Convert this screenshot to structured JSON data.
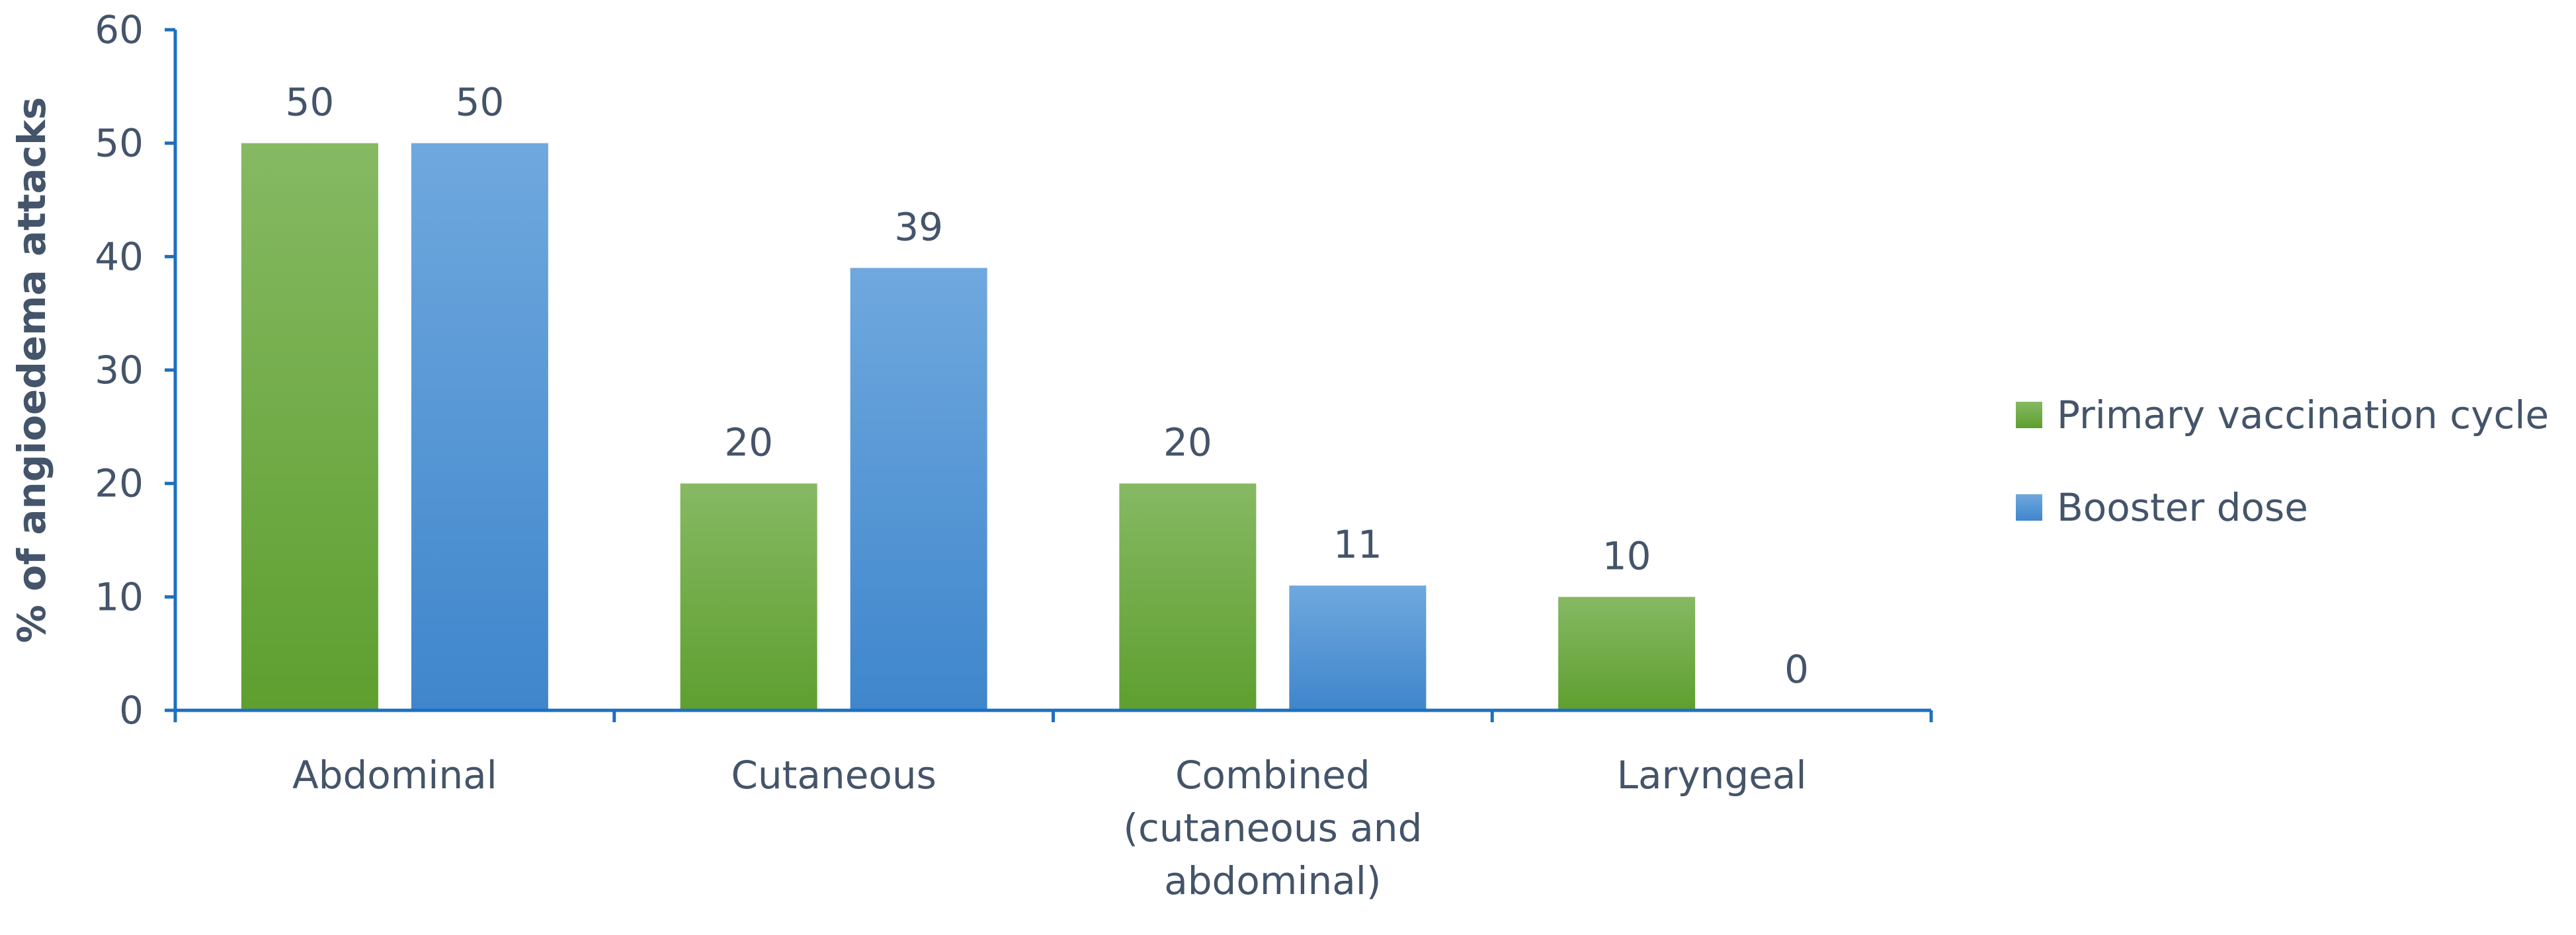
{
  "chart_data": {
    "type": "bar",
    "categories": [
      [
        "Abdominal"
      ],
      [
        "Cutaneous"
      ],
      [
        "Combined",
        "(cutaneous and",
        "abdominal)"
      ],
      [
        "Laryngeal"
      ]
    ],
    "series": [
      {
        "name": "Primary vaccination cycle",
        "values": [
          50,
          20,
          20,
          10
        ],
        "color": "#6aaa3a"
      },
      {
        "name": "Booster dose",
        "values": [
          50,
          39,
          11,
          0
        ],
        "color": "#5a9bd8"
      }
    ],
    "ylabel": "% of angioedema attacks",
    "ylim": [
      0,
      60
    ],
    "yticks": [
      0,
      10,
      20,
      30,
      40,
      50,
      60
    ],
    "grid": false,
    "legend": "right",
    "axis_color": "#1f6fbf"
  }
}
